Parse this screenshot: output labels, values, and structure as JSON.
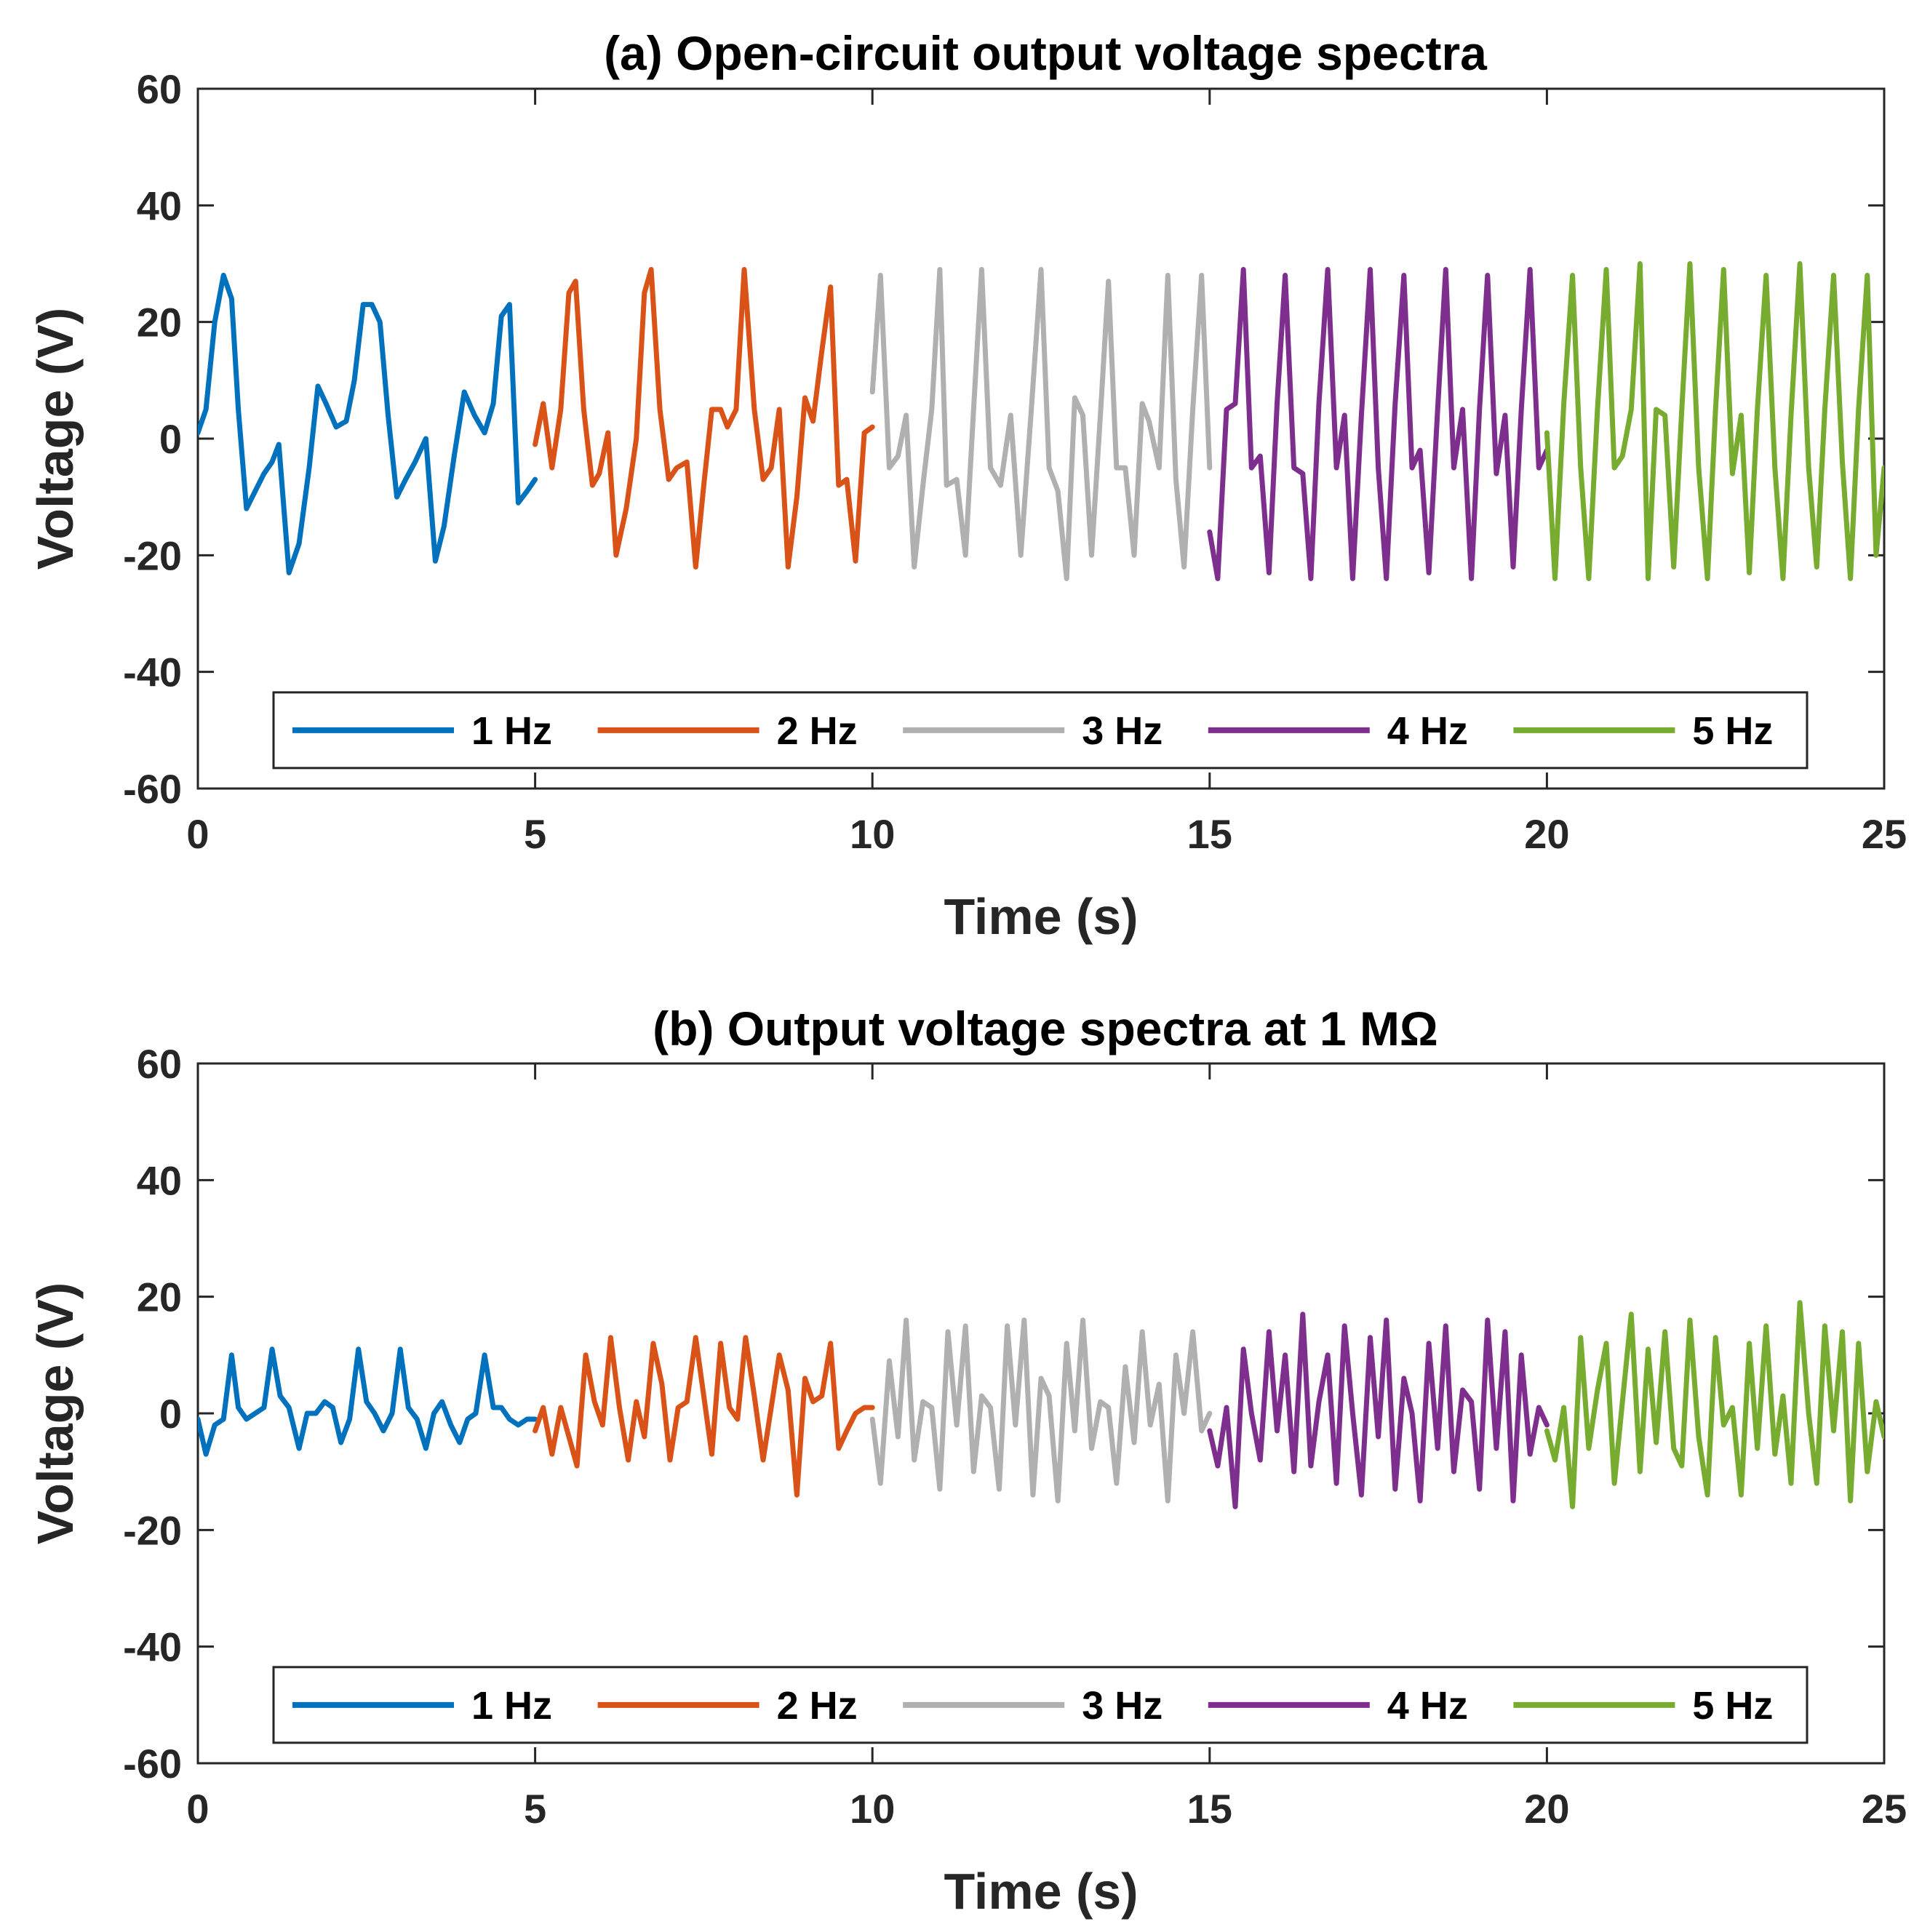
{
  "chart_data": [
    {
      "type": "line",
      "title": "(a) Open-circuit output voltage spectra",
      "xlabel": "Time (s)",
      "ylabel": "Voltage (V)",
      "xlim": [
        0,
        25
      ],
      "ylim": [
        -60,
        60
      ],
      "xticks": [
        0,
        5,
        10,
        15,
        20,
        25
      ],
      "yticks": [
        -60,
        -40,
        -20,
        0,
        20,
        40,
        60
      ],
      "xtick_labels": [
        "0",
        "5",
        "10",
        "15",
        "20",
        "25"
      ],
      "ytick_labels": [
        "-60",
        "-40",
        "-20",
        "0",
        "20",
        "40",
        "60"
      ],
      "grid": false,
      "legend_position": "bottom-center, horizontal",
      "series": [
        {
          "name": "1 Hz",
          "color": "#0072BD",
          "x": [
            0,
            0.12,
            0.25,
            0.38,
            0.5,
            0.6,
            0.72,
            0.85,
            0.98,
            1.1,
            1.2,
            1.35,
            1.5,
            1.65,
            1.78,
            1.9,
            2.05,
            2.2,
            2.32,
            2.45,
            2.58,
            2.7,
            2.82,
            2.95,
            3.08,
            3.22,
            3.38,
            3.52,
            3.65,
            3.8,
            3.95,
            4.1,
            4.25,
            4.38,
            4.5,
            4.62,
            4.75,
            4.88,
            5.0
          ],
          "y": [
            1,
            5,
            20,
            28,
            24,
            5,
            -12,
            -9,
            -6,
            -4,
            -1,
            -23,
            -18,
            -5,
            9,
            6,
            2,
            3,
            10,
            23,
            23,
            20,
            4,
            -10,
            -7,
            -4,
            0,
            -21,
            -15,
            -3,
            8,
            4,
            1,
            6,
            21,
            23,
            -11,
            -9,
            -7
          ]
        },
        {
          "name": "2 Hz",
          "color": "#D95319",
          "x": [
            5.0,
            5.12,
            5.25,
            5.38,
            5.5,
            5.6,
            5.72,
            5.85,
            5.95,
            6.08,
            6.2,
            6.35,
            6.5,
            6.62,
            6.72,
            6.85,
            6.98,
            7.1,
            7.25,
            7.38,
            7.5,
            7.62,
            7.75,
            7.85,
            7.98,
            8.1,
            8.25,
            8.38,
            8.5,
            8.62,
            8.75,
            8.88,
            9.0,
            9.12,
            9.25,
            9.38,
            9.5,
            9.62,
            9.75,
            9.88,
            10.0
          ],
          "y": [
            -1,
            6,
            -5,
            5,
            25,
            27,
            5,
            -8,
            -6,
            1,
            -20,
            -12,
            0,
            25,
            29,
            5,
            -7,
            -5,
            -4,
            -22,
            -8,
            5,
            5,
            2,
            5,
            29,
            5,
            -7,
            -5,
            5,
            -22,
            -10,
            7,
            3,
            15,
            26,
            -8,
            -7,
            -21,
            1,
            2
          ]
        },
        {
          "name": "3 Hz",
          "color": "#B0B0B0",
          "x": [
            10.0,
            10.12,
            10.25,
            10.38,
            10.5,
            10.62,
            10.75,
            10.88,
            11.0,
            11.1,
            11.25,
            11.38,
            11.5,
            11.62,
            11.75,
            11.9,
            12.05,
            12.2,
            12.35,
            12.5,
            12.62,
            12.75,
            12.88,
            13.0,
            13.12,
            13.25,
            13.38,
            13.5,
            13.62,
            13.75,
            13.88,
            14.0,
            14.1,
            14.25,
            14.38,
            14.5,
            14.62,
            14.75,
            14.88,
            15.0
          ],
          "y": [
            8,
            28,
            -5,
            -3,
            4,
            -22,
            -8,
            5,
            29,
            -8,
            -7,
            -20,
            5,
            29,
            -5,
            -8,
            4,
            -20,
            4,
            29,
            -5,
            -9,
            -24,
            7,
            4,
            -20,
            4,
            27,
            -5,
            -5,
            -20,
            6,
            3,
            -5,
            28,
            -7,
            -22,
            5,
            28,
            -5
          ]
        },
        {
          "name": "4 Hz",
          "color": "#7E2F8E",
          "x": [
            15.0,
            15.12,
            15.25,
            15.38,
            15.5,
            15.62,
            15.75,
            15.88,
            16.0,
            16.12,
            16.25,
            16.38,
            16.5,
            16.62,
            16.75,
            16.88,
            17.0,
            17.12,
            17.25,
            17.38,
            17.5,
            17.62,
            17.75,
            17.88,
            18.0,
            18.12,
            18.25,
            18.38,
            18.5,
            18.62,
            18.75,
            18.88,
            19.0,
            19.12,
            19.25,
            19.38,
            19.5,
            19.62,
            19.75,
            19.88,
            20.0
          ],
          "y": [
            -16,
            -24,
            5,
            6,
            29,
            -5,
            -3,
            -23,
            6,
            28,
            -5,
            -6,
            -24,
            6,
            29,
            -5,
            4,
            -24,
            4,
            29,
            -5,
            -24,
            6,
            28,
            -5,
            -2,
            -23,
            5,
            29,
            -5,
            5,
            -24,
            5,
            28,
            -6,
            4,
            -22,
            5,
            29,
            -5,
            -2
          ]
        },
        {
          "name": "5 Hz",
          "color": "#77AC30",
          "x": [
            20.0,
            20.12,
            20.25,
            20.38,
            20.5,
            20.62,
            20.75,
            20.88,
            21.0,
            21.12,
            21.25,
            21.38,
            21.5,
            21.62,
            21.75,
            21.88,
            22.0,
            22.12,
            22.25,
            22.38,
            22.5,
            22.62,
            22.75,
            22.88,
            23.0,
            23.12,
            23.25,
            23.38,
            23.5,
            23.62,
            23.75,
            23.88,
            24.0,
            24.12,
            24.25,
            24.38,
            24.5,
            24.62,
            24.75,
            24.88,
            25.0
          ],
          "y": [
            1,
            -24,
            6,
            28,
            -5,
            -24,
            5,
            29,
            -5,
            -3,
            5,
            30,
            -24,
            5,
            4,
            -22,
            5,
            30,
            -5,
            -24,
            5,
            29,
            -6,
            4,
            -23,
            5,
            28,
            -5,
            -24,
            4,
            30,
            -5,
            -22,
            5,
            28,
            -4,
            -24,
            5,
            28,
            -20,
            -5
          ]
        }
      ]
    },
    {
      "type": "line",
      "title": "(b) Output voltage spectra at 1 MΩ",
      "xlabel": "Time (s)",
      "ylabel": "Voltage (V)",
      "xlim": [
        0,
        25
      ],
      "ylim": [
        -60,
        60
      ],
      "xticks": [
        0,
        5,
        10,
        15,
        20,
        25
      ],
      "yticks": [
        -60,
        -40,
        -20,
        0,
        20,
        40,
        60
      ],
      "xtick_labels": [
        "0",
        "5",
        "10",
        "15",
        "20",
        "25"
      ],
      "ytick_labels": [
        "-60",
        "-40",
        "-20",
        "0",
        "20",
        "40",
        "60"
      ],
      "grid": false,
      "legend_position": "bottom-center, horizontal",
      "series": [
        {
          "name": "1 Hz",
          "color": "#0072BD",
          "x": [
            0,
            0.12,
            0.25,
            0.38,
            0.5,
            0.6,
            0.72,
            0.85,
            0.98,
            1.1,
            1.22,
            1.35,
            1.5,
            1.62,
            1.75,
            1.88,
            2.0,
            2.12,
            2.25,
            2.38,
            2.5,
            2.62,
            2.75,
            2.88,
            3.0,
            3.12,
            3.25,
            3.38,
            3.5,
            3.62,
            3.75,
            3.88,
            4.0,
            4.12,
            4.25,
            4.38,
            4.5,
            4.62,
            4.75,
            4.88,
            5.0
          ],
          "y": [
            -1,
            -7,
            -2,
            -1,
            10,
            1,
            -1,
            0,
            1,
            11,
            3,
            1,
            -6,
            0,
            0,
            2,
            1,
            -5,
            -1,
            11,
            2,
            0,
            -3,
            0,
            11,
            1,
            -1,
            -6,
            0,
            2,
            -2,
            -5,
            -1,
            0,
            10,
            1,
            1,
            -1,
            -2,
            -1,
            -1
          ]
        },
        {
          "name": "2 Hz",
          "color": "#D95319",
          "x": [
            5.0,
            5.12,
            5.25,
            5.38,
            5.5,
            5.62,
            5.75,
            5.88,
            6.0,
            6.12,
            6.25,
            6.38,
            6.5,
            6.62,
            6.75,
            6.88,
            7.0,
            7.12,
            7.25,
            7.38,
            7.5,
            7.62,
            7.75,
            7.88,
            8.0,
            8.12,
            8.25,
            8.38,
            8.5,
            8.62,
            8.75,
            8.88,
            9.0,
            9.12,
            9.25,
            9.38,
            9.5,
            9.62,
            9.75,
            9.88,
            10.0
          ],
          "y": [
            -3,
            1,
            -7,
            1,
            -4,
            -9,
            10,
            2,
            -2,
            13,
            1,
            -8,
            2,
            -4,
            12,
            5,
            -8,
            1,
            2,
            13,
            3,
            -7,
            12,
            1,
            -1,
            13,
            3,
            -8,
            1,
            10,
            4,
            -14,
            6,
            2,
            3,
            12,
            -6,
            -3,
            0,
            1,
            1
          ]
        },
        {
          "name": "3 Hz",
          "color": "#B0B0B0",
          "x": [
            10.0,
            10.12,
            10.25,
            10.38,
            10.5,
            10.62,
            10.75,
            10.88,
            11.0,
            11.12,
            11.25,
            11.38,
            11.5,
            11.62,
            11.75,
            11.88,
            12.0,
            12.12,
            12.25,
            12.38,
            12.5,
            12.62,
            12.75,
            12.88,
            13.0,
            13.12,
            13.25,
            13.38,
            13.5,
            13.62,
            13.75,
            13.88,
            14.0,
            14.12,
            14.25,
            14.38,
            14.5,
            14.62,
            14.75,
            14.88,
            15.0
          ],
          "y": [
            -1,
            -12,
            9,
            -4,
            16,
            -8,
            2,
            1,
            -13,
            14,
            -2,
            15,
            -10,
            3,
            1,
            -13,
            15,
            -2,
            16,
            -14,
            6,
            3,
            -15,
            12,
            -3,
            16,
            -6,
            2,
            1,
            -12,
            8,
            -5,
            14,
            -2,
            5,
            -15,
            10,
            0,
            14,
            -3,
            0
          ]
        },
        {
          "name": "4 Hz",
          "color": "#7E2F8E",
          "x": [
            15.0,
            15.12,
            15.25,
            15.38,
            15.5,
            15.62,
            15.75,
            15.88,
            16.0,
            16.12,
            16.25,
            16.38,
            16.5,
            16.62,
            16.75,
            16.88,
            17.0,
            17.12,
            17.25,
            17.38,
            17.5,
            17.62,
            17.75,
            17.88,
            18.0,
            18.12,
            18.25,
            18.38,
            18.5,
            18.62,
            18.75,
            18.88,
            19.0,
            19.12,
            19.25,
            19.38,
            19.5,
            19.62,
            19.75,
            19.88,
            20.0
          ],
          "y": [
            -3,
            -9,
            1,
            -16,
            11,
            0,
            -8,
            14,
            -3,
            10,
            -10,
            17,
            -9,
            2,
            10,
            -12,
            15,
            0,
            -14,
            13,
            -4,
            16,
            -13,
            6,
            0,
            -15,
            12,
            -6,
            15,
            -10,
            4,
            2,
            -13,
            16,
            -6,
            14,
            -15,
            10,
            -7,
            1,
            -2
          ]
        },
        {
          "name": "5 Hz",
          "color": "#77AC30",
          "x": [
            20.0,
            20.12,
            20.25,
            20.38,
            20.5,
            20.62,
            20.75,
            20.88,
            21.0,
            21.12,
            21.25,
            21.38,
            21.5,
            21.62,
            21.75,
            21.88,
            22.0,
            22.12,
            22.25,
            22.38,
            22.5,
            22.62,
            22.75,
            22.88,
            23.0,
            23.12,
            23.25,
            23.38,
            23.5,
            23.62,
            23.75,
            23.88,
            24.0,
            24.12,
            24.25,
            24.38,
            24.5,
            24.62,
            24.75,
            24.88,
            25.0
          ],
          "y": [
            -3,
            -8,
            1,
            -16,
            13,
            -6,
            4,
            12,
            -12,
            2,
            17,
            -10,
            11,
            -5,
            14,
            -6,
            -9,
            16,
            -4,
            -14,
            13,
            -2,
            1,
            -14,
            12,
            -6,
            15,
            -7,
            3,
            -12,
            19,
            0,
            -12,
            15,
            -3,
            14,
            -15,
            12,
            -10,
            2,
            -4
          ]
        }
      ]
    }
  ]
}
